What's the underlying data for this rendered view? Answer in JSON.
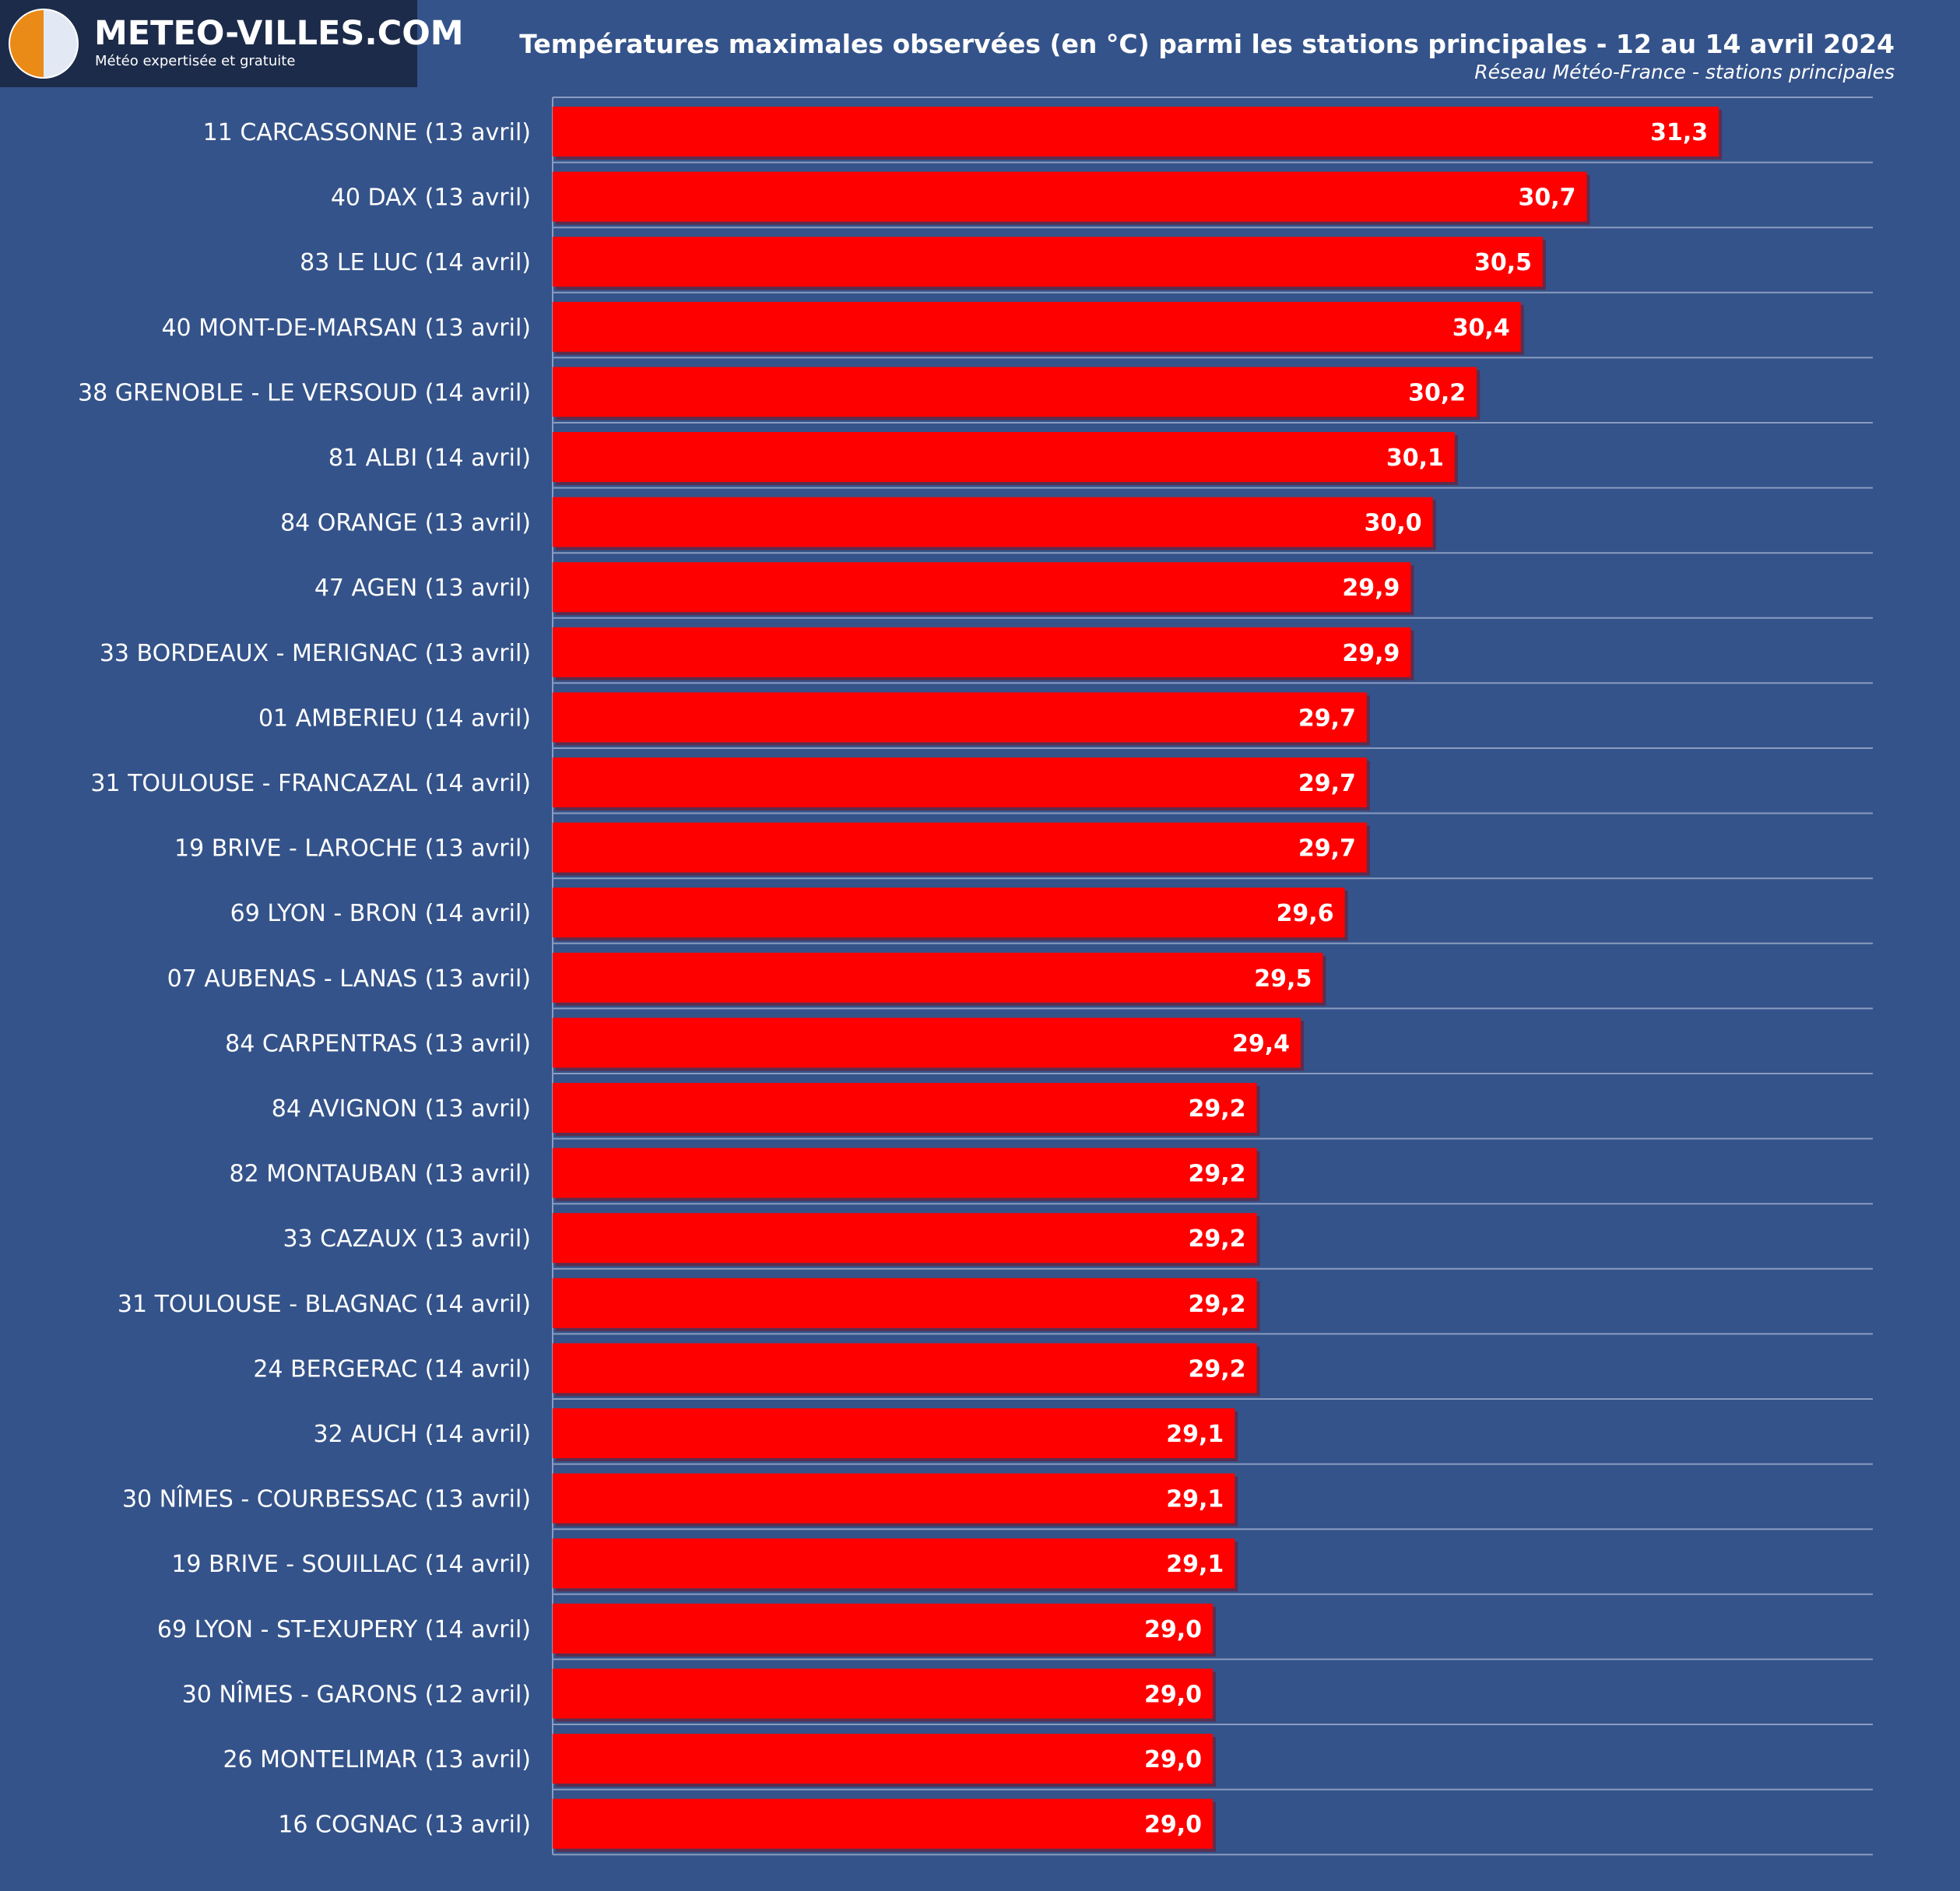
{
  "logo": {
    "title": "METEO-VILLES.COM",
    "tagline": "Météo expertisée et gratuite"
  },
  "colors": {
    "background": "#34538a",
    "bar": "#ff0000",
    "gridline": "#8a9cc0",
    "logo_orange": "#ea8a17",
    "logo_light": "#e3e9f4"
  },
  "chart_data": {
    "type": "bar",
    "orientation": "horizontal",
    "title": "Températures maximales observées (en °C) parmi les stations principales - 12 au 14 avril 2024",
    "subtitle": "Réseau Météo-France - stations principales",
    "categories": [
      "11 CARCASSONNE (13 avril)",
      "40 DAX (13 avril)",
      "83 LE LUC (14 avril)",
      "40 MONT-DE-MARSAN (13 avril)",
      "38 GRENOBLE - LE VERSOUD (14 avril)",
      "81 ALBI (14 avril)",
      "84 ORANGE (13 avril)",
      "47 AGEN (13 avril)",
      "33 BORDEAUX - MERIGNAC (13 avril)",
      "01 AMBERIEU (14 avril)",
      "31 TOULOUSE - FRANCAZAL (14 avril)",
      "19 BRIVE - LAROCHE (13 avril)",
      "69 LYON - BRON (14 avril)",
      "07 AUBENAS - LANAS (13 avril)",
      "84 CARPENTRAS (13 avril)",
      "84 AVIGNON (13 avril)",
      "82 MONTAUBAN (13 avril)",
      "33 CAZAUX (13 avril)",
      "31 TOULOUSE - BLAGNAC (14 avril)",
      "24 BERGERAC (14 avril)",
      "32 AUCH (14 avril)",
      "30 NÎMES - COURBESSAC (13 avril)",
      "19 BRIVE - SOUILLAC (14 avril)",
      "69 LYON - ST-EXUPERY (14 avril)",
      "30 NÎMES - GARONS (12 avril)",
      "26 MONTELIMAR (13 avril)",
      "16 COGNAC (13 avril)"
    ],
    "values": [
      31.3,
      30.7,
      30.5,
      30.4,
      30.2,
      30.1,
      30.0,
      29.9,
      29.9,
      29.7,
      29.7,
      29.7,
      29.6,
      29.5,
      29.4,
      29.2,
      29.2,
      29.2,
      29.2,
      29.2,
      29.1,
      29.1,
      29.1,
      29.0,
      29.0,
      29.0,
      29.0
    ],
    "value_labels": [
      "31,3",
      "30,7",
      "30,5",
      "30,4",
      "30,2",
      "30,1",
      "30,0",
      "29,9",
      "29,9",
      "29,7",
      "29,7",
      "29,7",
      "29,6",
      "29,5",
      "29,4",
      "29,2",
      "29,2",
      "29,2",
      "29,2",
      "29,2",
      "29,1",
      "29,1",
      "29,1",
      "29,0",
      "29,0",
      "29,0",
      "29,0"
    ],
    "xlim": [
      26.0,
      32.0
    ],
    "grid": true,
    "legend": "none"
  }
}
